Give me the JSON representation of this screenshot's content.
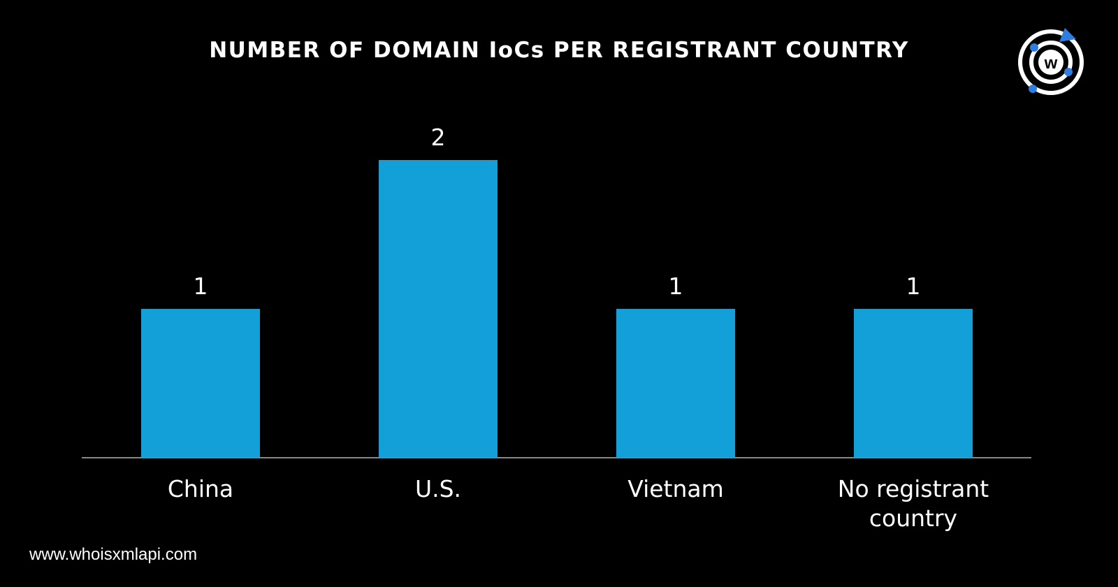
{
  "chart_data": {
    "type": "bar",
    "title": "NUMBER OF DOMAIN IoCs PER REGISTRANT COUNTRY",
    "categories": [
      "China",
      "U.S.",
      "Vietnam",
      "No registrant country"
    ],
    "values": [
      1,
      2,
      1,
      1
    ],
    "color": "#139fd8",
    "footer": "www.whoisxmlapi.com"
  }
}
